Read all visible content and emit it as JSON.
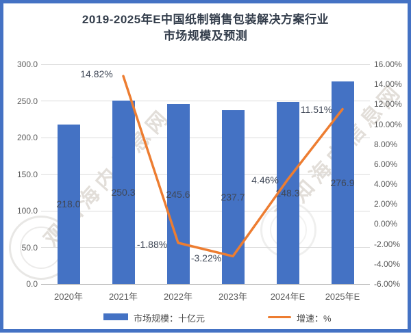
{
  "title": {
    "line1": "2019-2025年E中国纸制销售包装解决方案行业",
    "line2": "市场规模及预测"
  },
  "chart_data": {
    "type": "bar",
    "categories": [
      "2020年",
      "2021年",
      "2022年",
      "2023年",
      "2024年E",
      "2025年E"
    ],
    "series": [
      {
        "name": "市场规模：十亿元",
        "type": "bar",
        "values": [
          218.0,
          250.3,
          245.6,
          237.7,
          248.3,
          276.9
        ],
        "labels": [
          "218.0",
          "250.3",
          "245.6",
          "237.7",
          "248.3",
          "276.9"
        ],
        "axis": "left",
        "color": "#4472c4"
      },
      {
        "name": "增速：%",
        "type": "line",
        "values": [
          null,
          14.82,
          -1.88,
          -3.22,
          4.46,
          11.51
        ],
        "labels": [
          null,
          "14.82%",
          "-1.88%",
          "-3.22%",
          "4.46%",
          "11.51%"
        ],
        "label_offsets": [
          null,
          [
            -39,
            -3
          ],
          [
            -38,
            2
          ],
          [
            -39,
            3
          ],
          [
            -33,
            1
          ],
          [
            -38,
            0
          ]
        ],
        "axis": "right",
        "color": "#ed7d31"
      }
    ],
    "left_axis": {
      "min": 0,
      "max": 300,
      "tick_labels": [
        "300.0",
        "250.0",
        "200.0",
        "150.0",
        "100.0",
        "50.0",
        "0.0"
      ]
    },
    "right_axis": {
      "min": -6,
      "max": 16,
      "tick_labels": [
        "16.00%",
        "14.00%",
        "12.00%",
        "10.00%",
        "8.00%",
        "6.00%",
        "4.00%",
        "2.00%",
        "0.00%",
        "-2.00%",
        "-4.00%",
        "-6.00%"
      ]
    },
    "grid": true,
    "legend_position": "bottom",
    "title": "2019-2025年E中国纸制销售包装解决方案行业市场规模及预测"
  },
  "legend": {
    "market_label": "市场规模：十亿元",
    "growth_label": "增速：%"
  },
  "watermark": {
    "text": "观知海内信息网"
  },
  "colors": {
    "bar": "#4472c4",
    "line": "#ed7d31",
    "frame": "#4472c4",
    "gridline": "#d9d9d9"
  }
}
